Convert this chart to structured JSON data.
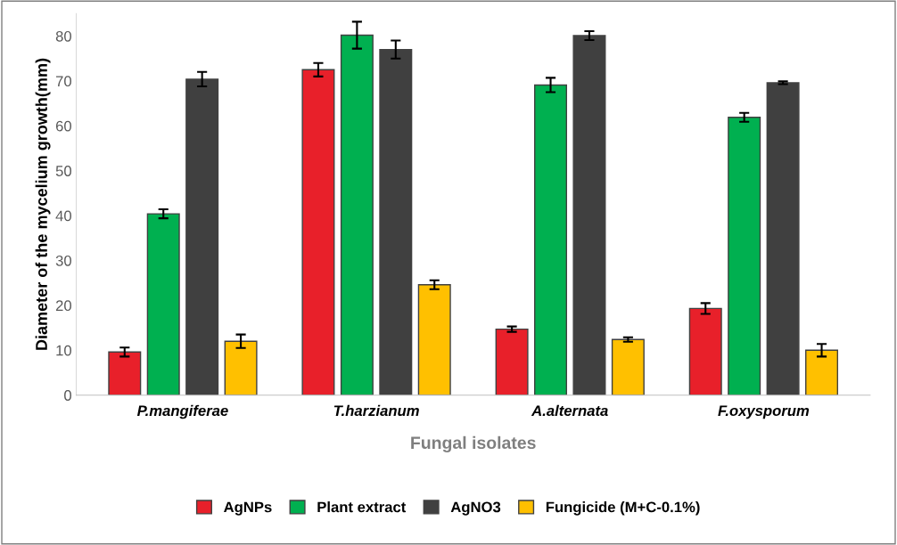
{
  "chart_data": {
    "type": "bar",
    "ylabel": "Diameter of the mycelium growth(mm)",
    "xlabel": "Fungal isolates",
    "categories": [
      "P.mangiferae",
      "T.harzianum",
      "A.alternata",
      "F.oxysporum"
    ],
    "series": [
      {
        "name": "AgNPs",
        "color": "#e8202a",
        "values": [
          9.6,
          72.5,
          14.7,
          19.3
        ],
        "errors": [
          1.0,
          1.5,
          0.6,
          1.2
        ]
      },
      {
        "name": "Plant extract",
        "color": "#00b050",
        "values": [
          40.4,
          80.2,
          69.1,
          61.9
        ],
        "errors": [
          1.0,
          3.0,
          1.6,
          1.0
        ]
      },
      {
        "name": "AgNO3",
        "color": "#404040",
        "values": [
          70.4,
          77.0,
          80.1,
          69.6
        ],
        "errors": [
          1.6,
          2.0,
          1.0,
          0.3
        ]
      },
      {
        "name": "Fungicide (M+C-0.1%)",
        "color": "#ffc000",
        "values": [
          12.0,
          24.6,
          12.4,
          10.0
        ],
        "errors": [
          1.5,
          1.0,
          0.5,
          1.4
        ]
      }
    ],
    "ylim": [
      0,
      85
    ],
    "yticks": [
      0,
      10,
      20,
      30,
      40,
      50,
      60,
      70,
      80
    ],
    "grid": false,
    "legend": "bottom"
  }
}
